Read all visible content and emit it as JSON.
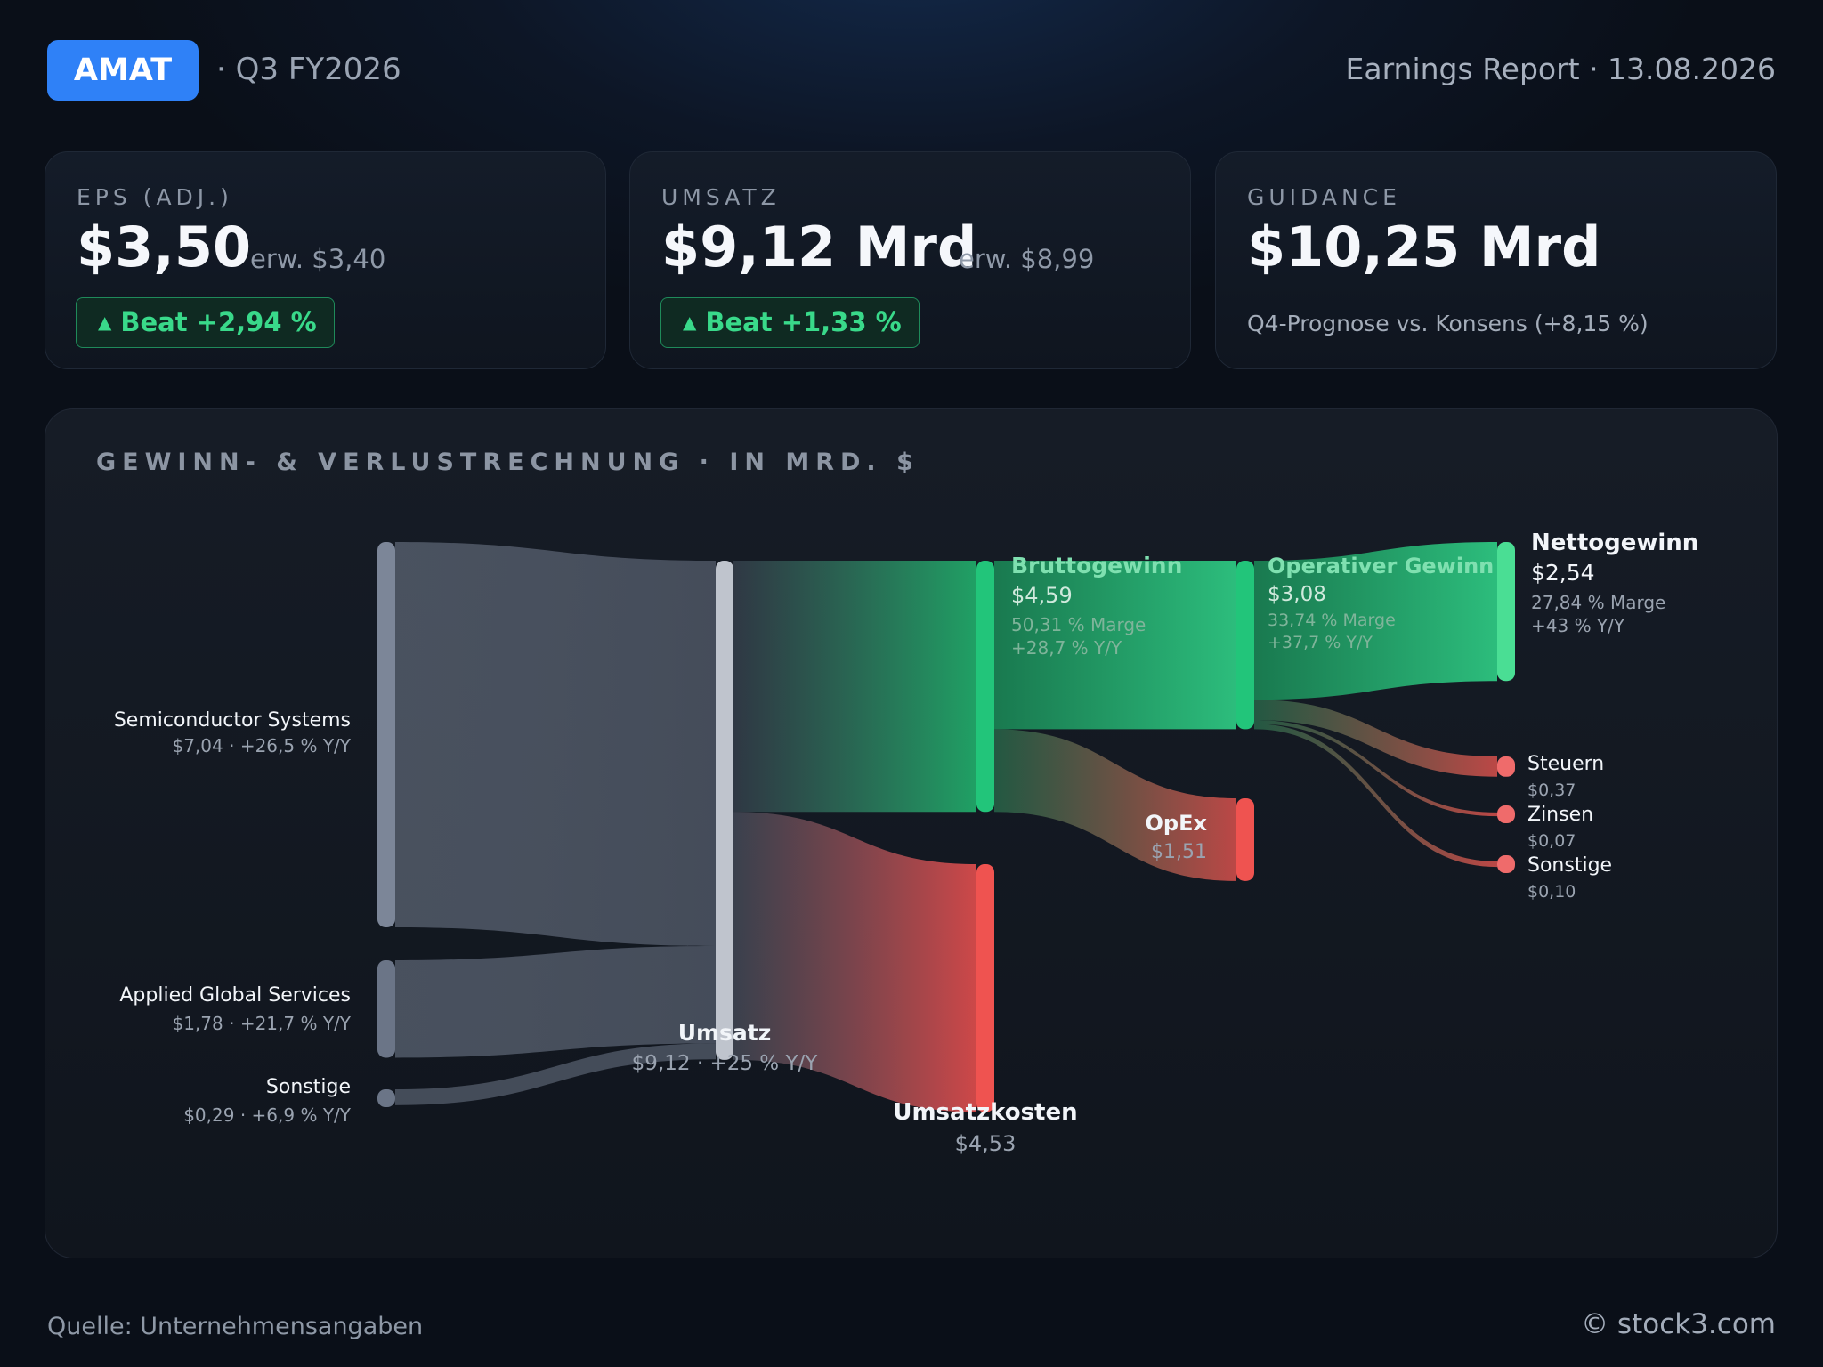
{
  "header": {
    "ticker": "AMAT",
    "period": "· Q3 FY2026",
    "report": "Earnings Report · 13.08.2026"
  },
  "cards": [
    {
      "label": "EPS (ADJ.)",
      "value": "$3,50",
      "estimate": "erw. $3,40",
      "badge": "Beat +2,94 %"
    },
    {
      "label": "UMSATZ",
      "value": "$9,12 Mrd",
      "estimate": "erw. $8,99",
      "badge": "Beat +1,33 %"
    },
    {
      "label": "GUIDANCE",
      "value": "$10,25 Mrd",
      "sub": "Q4-Prognose vs. Konsens (+8,15 %)"
    }
  ],
  "panel": {
    "title": "GEWINN- & VERLUSTRECHNUNG · IN MRD. $"
  },
  "footer": {
    "source": "Quelle: Unternehmensangaben",
    "copyright": "© stock3.com"
  },
  "colors": {
    "accent": "#2f81f7",
    "positive": "#22c57a",
    "negative": "#ef5350",
    "neutral": "#6b7585"
  },
  "chart_data": {
    "type": "sankey",
    "unit": "Mrd. $",
    "nodes": [
      {
        "id": "semi",
        "label": "Semiconductor Systems",
        "value": 7.04,
        "sub": "$7,04 · +26,5 % Y/Y"
      },
      {
        "id": "ags",
        "label": "Applied Global Services",
        "value": 1.78,
        "sub": "$1,78 · +21,7 % Y/Y"
      },
      {
        "id": "other_seg",
        "label": "Sonstige",
        "value": 0.29,
        "sub": "$0,29 · +6,9 % Y/Y"
      },
      {
        "id": "revenue",
        "label": "Umsatz",
        "value": 9.12,
        "sub": "$9,12 · +25 % Y/Y"
      },
      {
        "id": "gross",
        "label": "Bruttogewinn",
        "value": 4.59,
        "sub": "$4,59",
        "margin": "50,31 % Marge",
        "yoy": "+28,7 % Y/Y"
      },
      {
        "id": "cogs",
        "label": "Umsatzkosten",
        "value": 4.53,
        "sub": "$4,53"
      },
      {
        "id": "opinc",
        "label": "Operativer Gewinn",
        "value": 3.08,
        "sub": "$3,08",
        "margin": "33,74 % Marge",
        "yoy": "+37,7 % Y/Y"
      },
      {
        "id": "opex",
        "label": "OpEx",
        "value": 1.51,
        "sub": "$1,51"
      },
      {
        "id": "net",
        "label": "Nettogewinn",
        "value": 2.54,
        "sub": "$2,54",
        "margin": "27,84 % Marge",
        "yoy": "+43 % Y/Y"
      },
      {
        "id": "tax",
        "label": "Steuern",
        "value": 0.37,
        "sub": "$0,37"
      },
      {
        "id": "interest",
        "label": "Zinsen",
        "value": 0.07,
        "sub": "$0,07"
      },
      {
        "id": "other_exp",
        "label": "Sonstige",
        "value": 0.1,
        "sub": "$0,10"
      }
    ],
    "links": [
      {
        "source": "semi",
        "target": "revenue",
        "value": 7.04
      },
      {
        "source": "ags",
        "target": "revenue",
        "value": 1.78
      },
      {
        "source": "other_seg",
        "target": "revenue",
        "value": 0.29
      },
      {
        "source": "revenue",
        "target": "gross",
        "value": 4.59
      },
      {
        "source": "revenue",
        "target": "cogs",
        "value": 4.53
      },
      {
        "source": "gross",
        "target": "opinc",
        "value": 3.08
      },
      {
        "source": "gross",
        "target": "opex",
        "value": 1.51
      },
      {
        "source": "opinc",
        "target": "net",
        "value": 2.54
      },
      {
        "source": "opinc",
        "target": "tax",
        "value": 0.37
      },
      {
        "source": "opinc",
        "target": "interest",
        "value": 0.07
      },
      {
        "source": "opinc",
        "target": "other_exp",
        "value": 0.1
      }
    ]
  }
}
